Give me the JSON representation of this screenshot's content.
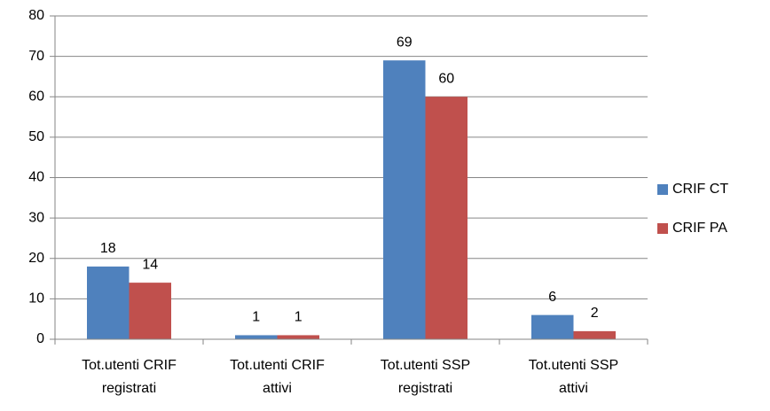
{
  "chart_data": {
    "type": "bar",
    "categories": [
      "Tot.utenti CRIF\nregistrati",
      "Tot.utenti CRIF\nattivi",
      "Tot.utenti SSP\nregistrati",
      "Tot.utenti SSP\nattivi"
    ],
    "series": [
      {
        "name": "CRIF CT",
        "color": "#4f81bd",
        "values": [
          18,
          1,
          69,
          6
        ]
      },
      {
        "name": "CRIF PA",
        "color": "#c0504d",
        "values": [
          14,
          1,
          60,
          2
        ]
      }
    ],
    "ylim": [
      0,
      80
    ],
    "yticks": [
      0,
      10,
      20,
      30,
      40,
      50,
      60,
      70,
      80
    ],
    "grid": true,
    "legend": "right"
  }
}
